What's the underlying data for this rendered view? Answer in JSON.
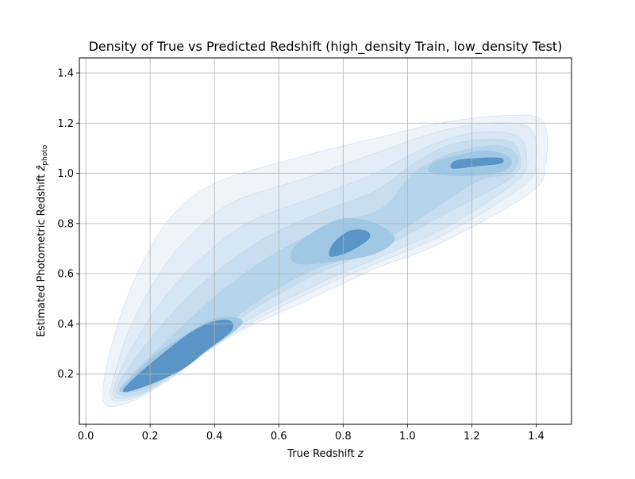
{
  "chart_data": {
    "type": "density_contour",
    "title": "Density of True vs Predicted Redshift (high_density Train, low_density Test)",
    "xlabel": "True Redshift z",
    "ylabel": "Estimated Photometric Redshift ẑ_photo",
    "xlabel_parts": {
      "text": "True Redshift ",
      "var": "z"
    },
    "ylabel_parts": {
      "text": "Estimated Photometric Redshift ",
      "var": "ẑ",
      "sub": "photo"
    },
    "xlim": [
      -0.02,
      1.51
    ],
    "ylim": [
      0.0,
      1.46
    ],
    "xticks": [
      0.0,
      0.2,
      0.4,
      0.6,
      0.8,
      1.0,
      1.2,
      1.4
    ],
    "xtick_labels": [
      "0.0",
      "0.2",
      "0.4",
      "0.6",
      "0.8",
      "1.0",
      "1.2",
      "1.4"
    ],
    "yticks": [
      0.2,
      0.4,
      0.6,
      0.8,
      1.0,
      1.2,
      1.4
    ],
    "ytick_labels": [
      "0.2",
      "0.4",
      "0.6",
      "0.8",
      "1.0",
      "1.2",
      "1.4"
    ],
    "grid": true,
    "colormap": "Blues",
    "levels": [
      {
        "level": 1,
        "color": "#eef4fa",
        "points": [
          [
            0.06,
            0.08
          ],
          [
            0.14,
            0.09
          ],
          [
            0.25,
            0.17
          ],
          [
            0.45,
            0.35
          ],
          [
            0.7,
            0.5
          ],
          [
            0.9,
            0.62
          ],
          [
            1.1,
            0.72
          ],
          [
            1.38,
            0.92
          ],
          [
            1.43,
            1.04
          ],
          [
            1.42,
            1.21
          ],
          [
            1.3,
            1.23
          ],
          [
            1.1,
            1.2
          ],
          [
            0.9,
            1.14
          ],
          [
            0.65,
            1.06
          ],
          [
            0.4,
            0.96
          ],
          [
            0.26,
            0.82
          ],
          [
            0.16,
            0.6
          ],
          [
            0.1,
            0.4
          ],
          [
            0.06,
            0.2
          ]
        ]
      },
      {
        "level": 2,
        "color": "#e3edf7",
        "points": [
          [
            0.08,
            0.1
          ],
          [
            0.16,
            0.11
          ],
          [
            0.28,
            0.2
          ],
          [
            0.48,
            0.38
          ],
          [
            0.72,
            0.54
          ],
          [
            0.92,
            0.65
          ],
          [
            1.12,
            0.76
          ],
          [
            1.36,
            0.95
          ],
          [
            1.4,
            1.05
          ],
          [
            1.38,
            1.18
          ],
          [
            1.25,
            1.2
          ],
          [
            1.08,
            1.16
          ],
          [
            0.9,
            1.08
          ],
          [
            0.68,
            0.98
          ],
          [
            0.45,
            0.88
          ],
          [
            0.3,
            0.72
          ],
          [
            0.2,
            0.54
          ],
          [
            0.13,
            0.36
          ],
          [
            0.09,
            0.2
          ]
        ]
      },
      {
        "level": 3,
        "color": "#d7e6f3",
        "points": [
          [
            0.09,
            0.11
          ],
          [
            0.17,
            0.12
          ],
          [
            0.3,
            0.22
          ],
          [
            0.5,
            0.41
          ],
          [
            0.74,
            0.57
          ],
          [
            0.94,
            0.68
          ],
          [
            1.14,
            0.8
          ],
          [
            1.34,
            0.97
          ],
          [
            1.37,
            1.06
          ],
          [
            1.34,
            1.15
          ],
          [
            1.2,
            1.16
          ],
          [
            1.05,
            1.1
          ],
          [
            0.9,
            1.0
          ],
          [
            0.7,
            0.9
          ],
          [
            0.5,
            0.8
          ],
          [
            0.34,
            0.64
          ],
          [
            0.23,
            0.48
          ],
          [
            0.15,
            0.32
          ],
          [
            0.1,
            0.19
          ]
        ]
      },
      {
        "level": 4,
        "color": "#c8ddef",
        "points": [
          [
            0.1,
            0.12
          ],
          [
            0.18,
            0.13
          ],
          [
            0.31,
            0.24
          ],
          [
            0.5,
            0.44
          ],
          [
            0.72,
            0.6
          ],
          [
            0.93,
            0.71
          ],
          [
            1.12,
            0.84
          ],
          [
            1.32,
            0.98
          ],
          [
            1.35,
            1.06
          ],
          [
            1.31,
            1.13
          ],
          [
            1.15,
            1.12
          ],
          [
            1.02,
            1.04
          ],
          [
            0.9,
            0.93
          ],
          [
            0.72,
            0.84
          ],
          [
            0.54,
            0.73
          ],
          [
            0.38,
            0.58
          ],
          [
            0.26,
            0.43
          ],
          [
            0.17,
            0.29
          ],
          [
            0.11,
            0.18
          ]
        ]
      },
      {
        "level": 5,
        "color": "#b6d4ea",
        "points": [
          [
            0.11,
            0.13
          ],
          [
            0.2,
            0.15
          ],
          [
            0.33,
            0.26
          ],
          [
            0.5,
            0.46
          ],
          [
            0.68,
            0.6
          ],
          [
            0.88,
            0.7
          ],
          [
            1.06,
            0.84
          ],
          [
            1.22,
            0.97
          ],
          [
            1.32,
            1.0
          ],
          [
            1.34,
            1.07
          ],
          [
            1.28,
            1.11
          ],
          [
            1.14,
            1.08
          ],
          [
            1.02,
            1.0
          ],
          [
            0.92,
            0.86
          ],
          [
            0.76,
            0.79
          ],
          [
            0.6,
            0.69
          ],
          [
            0.44,
            0.55
          ],
          [
            0.3,
            0.39
          ],
          [
            0.2,
            0.27
          ],
          [
            0.13,
            0.18
          ]
        ]
      },
      {
        "level": 6,
        "color": "#a0c8e4",
        "points": [
          [
            0.11,
            0.13
          ],
          [
            0.22,
            0.17
          ],
          [
            0.36,
            0.28
          ],
          [
            0.47,
            0.38
          ],
          [
            0.48,
            0.42
          ],
          [
            0.4,
            0.42
          ],
          [
            0.3,
            0.35
          ],
          [
            0.2,
            0.26
          ],
          [
            0.13,
            0.17
          ]
        ]
      },
      {
        "level": 6,
        "color": "#a0c8e4",
        "points": [
          [
            0.66,
            0.64
          ],
          [
            0.78,
            0.65
          ],
          [
            0.9,
            0.68
          ],
          [
            0.96,
            0.74
          ],
          [
            0.9,
            0.8
          ],
          [
            0.8,
            0.82
          ],
          [
            0.7,
            0.76
          ],
          [
            0.64,
            0.69
          ]
        ]
      },
      {
        "level": 6,
        "color": "#a0c8e4",
        "points": [
          [
            1.08,
            1.0
          ],
          [
            1.2,
            0.99
          ],
          [
            1.3,
            1.01
          ],
          [
            1.32,
            1.06
          ],
          [
            1.24,
            1.09
          ],
          [
            1.12,
            1.06
          ],
          [
            1.07,
            1.03
          ]
        ]
      },
      {
        "level": 7,
        "color": "#5b95c7",
        "points": [
          [
            0.12,
            0.13
          ],
          [
            0.2,
            0.16
          ],
          [
            0.3,
            0.22
          ],
          [
            0.38,
            0.3
          ],
          [
            0.45,
            0.37
          ],
          [
            0.45,
            0.41
          ],
          [
            0.4,
            0.41
          ],
          [
            0.32,
            0.36
          ],
          [
            0.22,
            0.26
          ],
          [
            0.14,
            0.17
          ]
        ]
      },
      {
        "level": 7,
        "color": "#5b95c7",
        "points": [
          [
            0.76,
            0.67
          ],
          [
            0.82,
            0.69
          ],
          [
            0.88,
            0.74
          ],
          [
            0.87,
            0.77
          ],
          [
            0.82,
            0.77
          ],
          [
            0.77,
            0.72
          ]
        ]
      },
      {
        "level": 7,
        "color": "#5b95c7",
        "points": [
          [
            1.14,
            1.02
          ],
          [
            1.22,
            1.03
          ],
          [
            1.29,
            1.04
          ],
          [
            1.29,
            1.06
          ],
          [
            1.22,
            1.06
          ],
          [
            1.15,
            1.05
          ]
        ]
      }
    ]
  }
}
